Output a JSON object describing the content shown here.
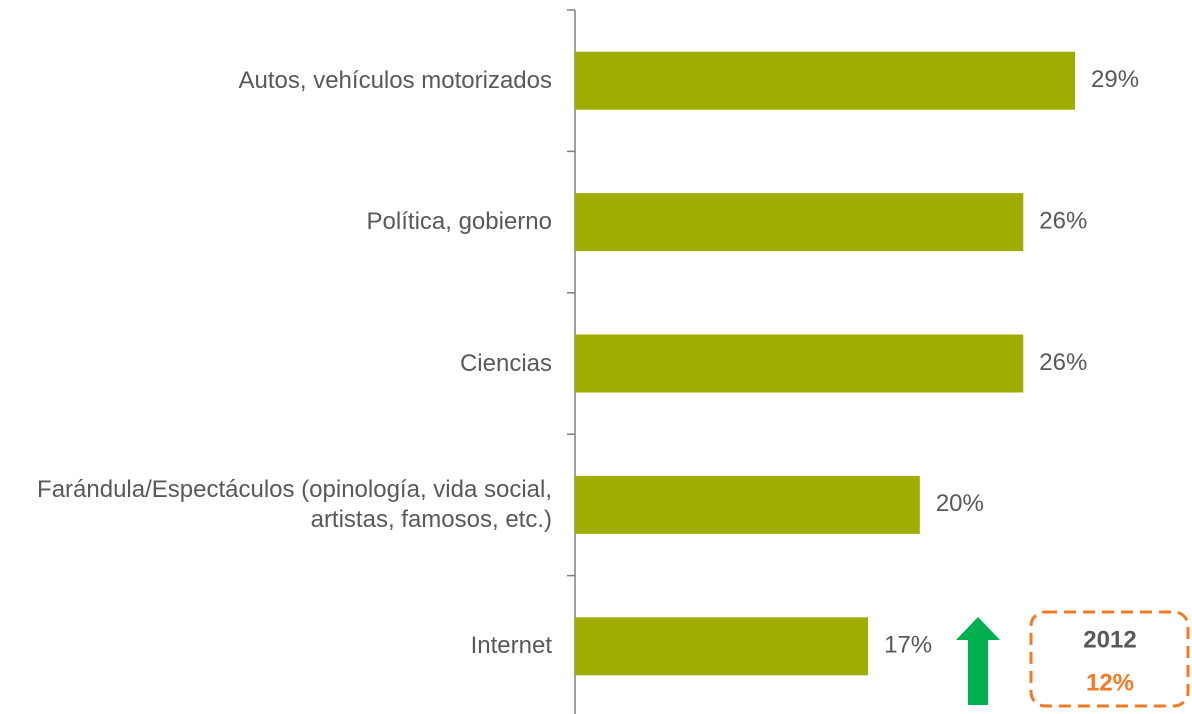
{
  "chart_data": {
    "type": "bar",
    "orientation": "horizontal",
    "categories": [
      "Autos, vehículos motorizados",
      "Política, gobierno",
      "Ciencias",
      "Farándula/Espectáculos (opinología, vida social, artistas, famosos, etc.)",
      "Internet"
    ],
    "values": [
      29,
      26,
      26,
      20,
      17
    ],
    "value_labels": [
      "29%",
      "26%",
      "26%",
      "20%",
      "17%"
    ],
    "color": "#9fad00",
    "annotation": {
      "year": "2012",
      "value_label": "12%",
      "value": 12
    }
  }
}
